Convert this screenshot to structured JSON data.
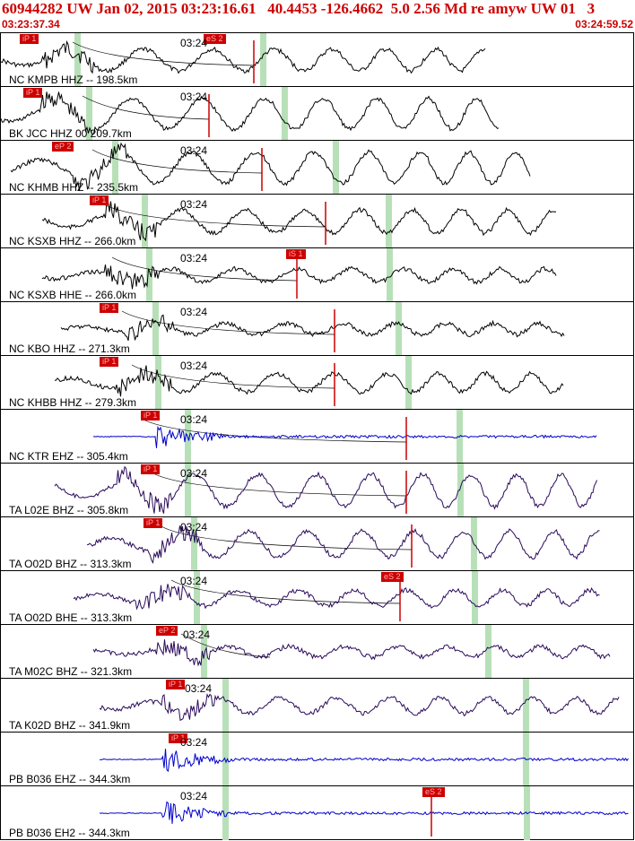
{
  "header": {
    "title": "60944282 UW Jan 02, 2015 03:23:16.61   40.4453 -126.4662  5.0 2.56 Md re amyw UW 01   3",
    "start_time": "03:23:37.34",
    "end_time": "03:24:59.52"
  },
  "time_tick_label": "03:24",
  "colors": {
    "trace": "#000000",
    "trace_blue": "#0000cc",
    "trace_purple": "#2a0a5a",
    "pick": "#cc0000",
    "marker": "#b8e0b8",
    "header_text": "#cc0000"
  },
  "panels": [
    {
      "label": "NC KMPB HHZ -- 198.5km",
      "trace_color": "black",
      "picks": [
        {
          "text": "iP 1",
          "at": 0.03
        },
        {
          "text": "eS 2",
          "at": 0.32
        }
      ],
      "onset": 0.05
    },
    {
      "label": "BK JCC HHZ 00 209.7km",
      "trace_color": "black",
      "picks": [
        {
          "text": "iP 1",
          "at": 0.035
        }
      ],
      "onset": 0.05
    },
    {
      "label": "NC KHMB HHZ -- 235.5km",
      "trace_color": "black",
      "picks": [
        {
          "text": "eP 2",
          "at": 0.08
        }
      ],
      "onset": 0.1
    },
    {
      "label": "NC KSXB HHZ -- 266.0km",
      "trace_color": "black",
      "picks": [
        {
          "text": "iP 1",
          "at": 0.14
        }
      ],
      "onset": 0.15
    },
    {
      "label": "NC KSXB HHE -- 266.0km",
      "trace_color": "black",
      "picks": [
        {
          "text": "iS 1",
          "at": 0.45
        }
      ],
      "onset": 0.15
    },
    {
      "label": "NC KBO HHZ -- 271.3km",
      "trace_color": "black",
      "picks": [
        {
          "text": "iP 1",
          "at": 0.155
        }
      ],
      "onset": 0.18
    },
    {
      "label": "NC KHBB HHZ -- 279.3km",
      "trace_color": "black",
      "picks": [
        {
          "text": "iP 1",
          "at": 0.155
        }
      ],
      "onset": 0.17
    },
    {
      "label": "NC KTR EHZ -- 305.4km",
      "trace_color": "blue",
      "picks": [
        {
          "text": "iP 1",
          "at": 0.22
        }
      ],
      "onset": 0.23
    },
    {
      "label": "TA L02E BHZ -- 305.8km",
      "trace_color": "purple",
      "picks": [
        {
          "text": "iP 1",
          "at": 0.22
        }
      ],
      "onset": 0.17
    },
    {
      "label": "TA O02D BHZ -- 313.3km",
      "trace_color": "purple",
      "picks": [
        {
          "text": "iP 1",
          "at": 0.225
        }
      ],
      "onset": 0.22
    },
    {
      "label": "TA O02D BHE -- 313.3km",
      "trace_color": "purple",
      "picks": [
        {
          "text": "eS 2",
          "at": 0.6
        }
      ],
      "onset": 0.2
    },
    {
      "label": "TA M02C BHZ -- 321.3km",
      "trace_color": "purple",
      "picks": [
        {
          "text": "eP 2",
          "at": 0.245
        }
      ],
      "onset": 0.23
    },
    {
      "label": "TA K02D BHZ -- 341.9km",
      "trace_color": "purple",
      "picks": [
        {
          "text": "iP 1",
          "at": 0.26
        }
      ],
      "onset": 0.24
    },
    {
      "label": "PB B036 EHZ -- 344.3km",
      "trace_color": "blue",
      "picks": [
        {
          "text": "iP 1",
          "at": 0.265
        }
      ],
      "onset": 0.24
    },
    {
      "label": "PB B036 EH2 -- 344.3km",
      "trace_color": "blue",
      "picks": [
        {
          "text": "eS 2",
          "at": 0.665
        }
      ],
      "onset": 0.24
    }
  ]
}
